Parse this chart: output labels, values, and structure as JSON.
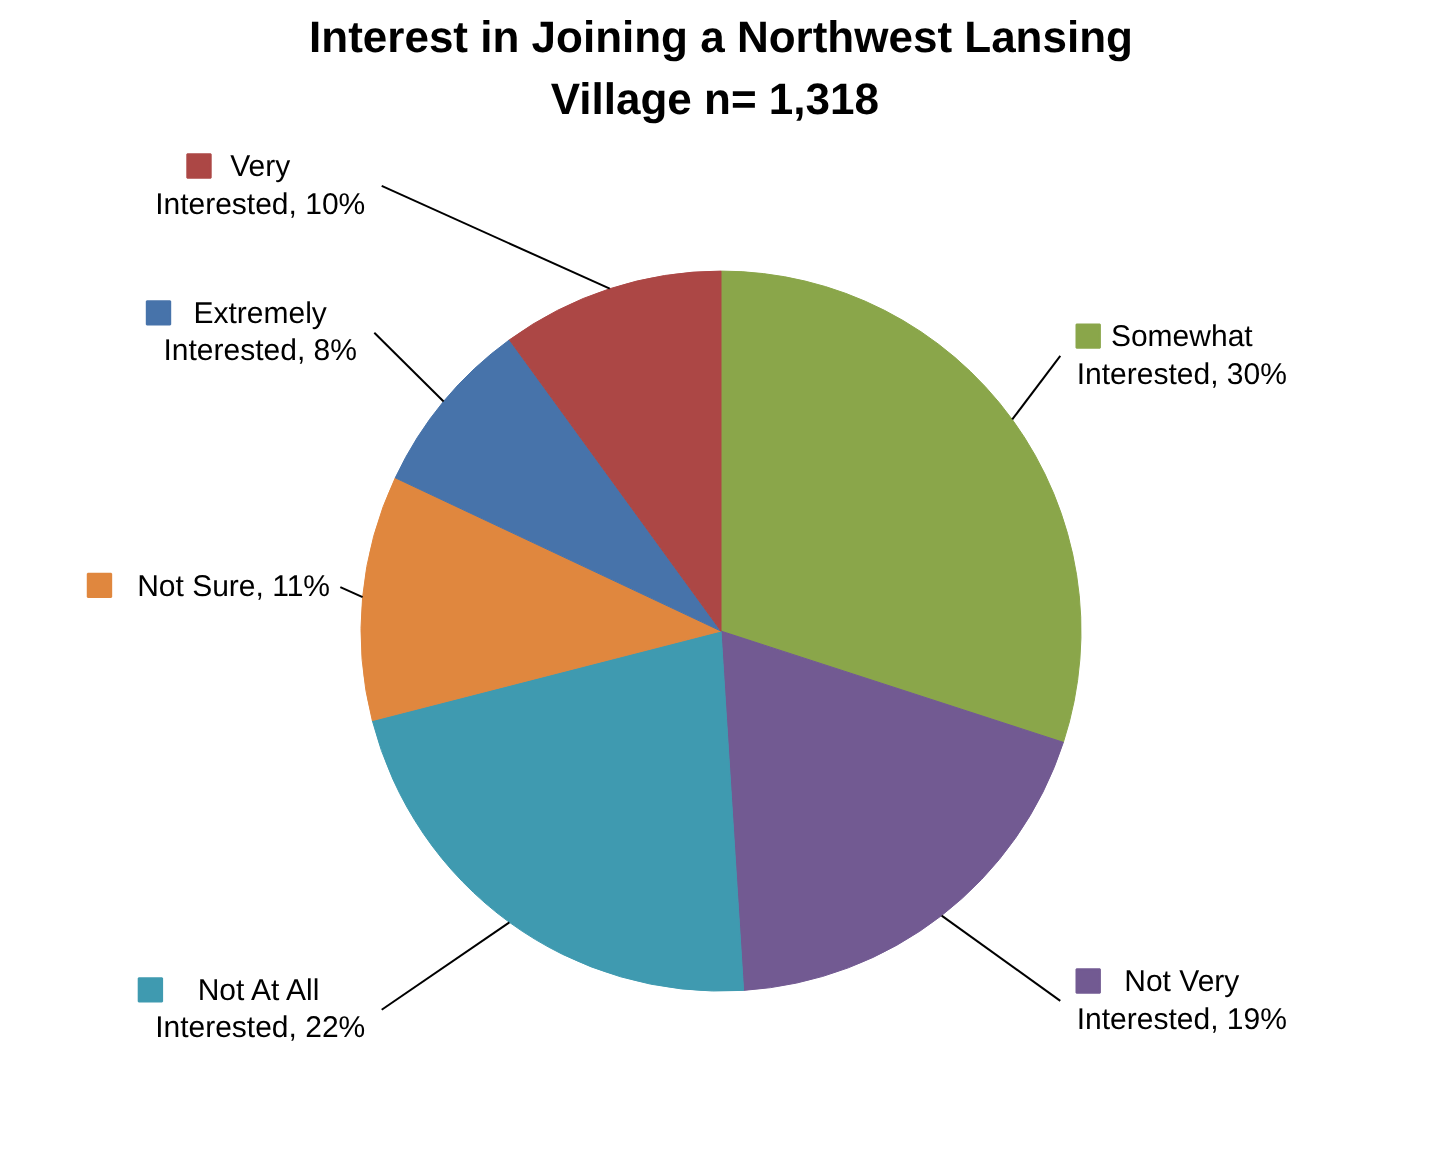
{
  "chart_data": {
    "type": "pie",
    "title": "Interest in Joining a Northwest Lansing Village  n= 1,318",
    "categories": [
      "Somewhat Interested",
      "Not Very Interested",
      "Not At All Interested",
      "Not Sure",
      "Extremely Interested",
      "Very Interested"
    ],
    "values": [
      30,
      19,
      22,
      11,
      8,
      10
    ],
    "value_labels": [
      "30%",
      "19%",
      "22%",
      "11%",
      "8%",
      "10%"
    ],
    "data_labels": true,
    "legend": "left",
    "colors": [
      "#8aa64a",
      "#725a92",
      "#3f9ab0",
      "#e0873e",
      "#4773aa",
      "#ac4745"
    ]
  }
}
